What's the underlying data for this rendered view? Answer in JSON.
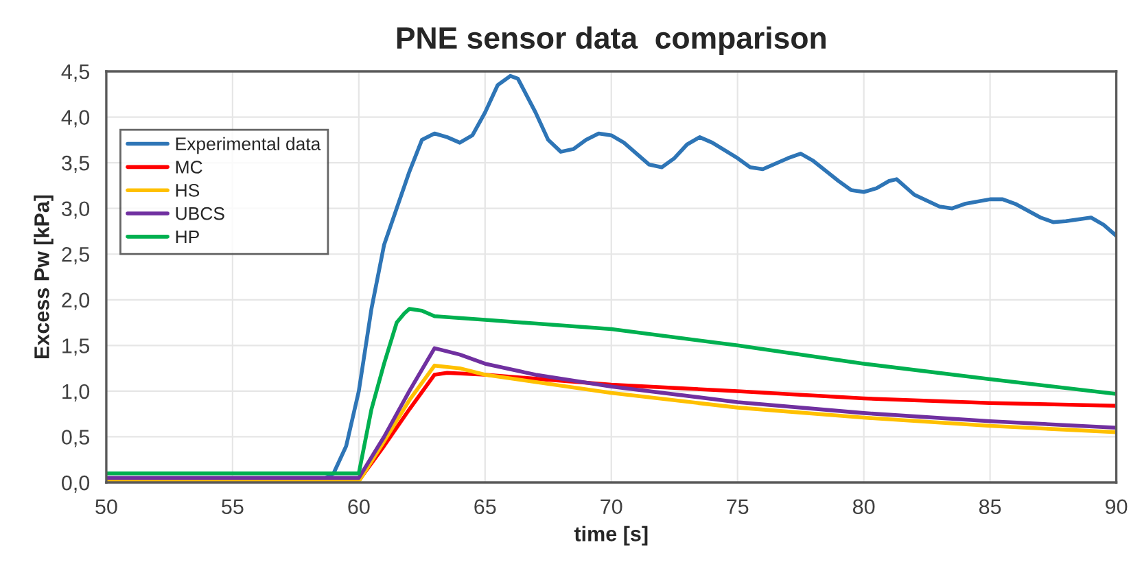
{
  "chart_data": {
    "type": "line",
    "title": "PNE sensor data  comparison",
    "xlabel": "time [s]",
    "ylabel": "Excess Pw [kPa]",
    "xlim": [
      50,
      90
    ],
    "xticks": [
      50,
      55,
      60,
      65,
      70,
      75,
      80,
      85,
      90
    ],
    "ylim": [
      0,
      4.5
    ],
    "yticks": [
      {
        "value": 0,
        "label": "0,0"
      },
      {
        "value": 0.5,
        "label": "0,5"
      },
      {
        "value": 1,
        "label": "1,0"
      },
      {
        "value": 1.5,
        "label": "1,5"
      },
      {
        "value": 2,
        "label": "2,0"
      },
      {
        "value": 2.5,
        "label": "2,5"
      },
      {
        "value": 3,
        "label": "3,0"
      },
      {
        "value": 3.5,
        "label": "3,5"
      },
      {
        "value": 4,
        "label": "4,0"
      },
      {
        "value": 4.5,
        "label": "4,5"
      }
    ],
    "grid": true,
    "legend": "top left",
    "marker": "none",
    "line_style": "solid",
    "series": [
      {
        "name": "Experimental data",
        "color": "#2e75b6",
        "x": [
          50,
          58.5,
          59,
          59.5,
          60,
          60.5,
          61,
          61.5,
          62,
          62.5,
          63,
          63.5,
          64,
          64.5,
          65,
          65.5,
          66,
          66.3,
          67,
          67.5,
          68,
          68.5,
          69,
          69.5,
          70,
          70.5,
          71,
          71.5,
          72,
          72.5,
          73,
          73.5,
          74,
          75,
          75.5,
          76,
          77,
          77.5,
          78,
          79,
          79.5,
          80,
          80.5,
          81,
          81.3,
          82,
          83,
          83.5,
          84,
          85,
          85.5,
          86,
          87,
          87.5,
          88,
          89,
          89.5,
          90
        ],
        "values": [
          0.02,
          0.02,
          0.1,
          0.4,
          1.0,
          1.9,
          2.6,
          3.0,
          3.4,
          3.75,
          3.82,
          3.78,
          3.72,
          3.8,
          4.05,
          4.35,
          4.45,
          4.42,
          4.05,
          3.75,
          3.62,
          3.65,
          3.75,
          3.82,
          3.8,
          3.72,
          3.6,
          3.48,
          3.45,
          3.55,
          3.7,
          3.78,
          3.72,
          3.55,
          3.45,
          3.43,
          3.55,
          3.6,
          3.52,
          3.3,
          3.2,
          3.18,
          3.22,
          3.3,
          3.32,
          3.15,
          3.02,
          3.0,
          3.05,
          3.1,
          3.1,
          3.05,
          2.9,
          2.85,
          2.86,
          2.9,
          2.82,
          2.7
        ]
      },
      {
        "name": "MC",
        "color": "#ff0000",
        "x": [
          50,
          60,
          61,
          62,
          63,
          63.5,
          65,
          70,
          75,
          80,
          85,
          90
        ],
        "values": [
          0.02,
          0.02,
          0.4,
          0.8,
          1.18,
          1.2,
          1.18,
          1.07,
          1.0,
          0.92,
          0.87,
          0.84
        ]
      },
      {
        "name": "HS",
        "color": "#ffc000",
        "x": [
          50,
          60,
          61,
          62,
          63,
          64,
          65,
          70,
          75,
          80,
          85,
          90
        ],
        "values": [
          0.01,
          0.01,
          0.45,
          0.9,
          1.28,
          1.25,
          1.18,
          0.98,
          0.82,
          0.71,
          0.62,
          0.55
        ]
      },
      {
        "name": "UBCS",
        "color": "#7030a0",
        "x": [
          50,
          60,
          61,
          62,
          63,
          64,
          65,
          67,
          70,
          75,
          80,
          85,
          90
        ],
        "values": [
          0.05,
          0.05,
          0.5,
          1.0,
          1.47,
          1.4,
          1.3,
          1.18,
          1.05,
          0.88,
          0.76,
          0.67,
          0.6
        ]
      },
      {
        "name": "HP",
        "color": "#00b050",
        "x": [
          50,
          60,
          60.5,
          61,
          61.5,
          61.8,
          62,
          62.5,
          63,
          65,
          70,
          75,
          80,
          85,
          90
        ],
        "values": [
          0.1,
          0.1,
          0.8,
          1.3,
          1.75,
          1.85,
          1.9,
          1.88,
          1.82,
          1.78,
          1.68,
          1.5,
          1.3,
          1.13,
          0.97
        ]
      }
    ]
  }
}
